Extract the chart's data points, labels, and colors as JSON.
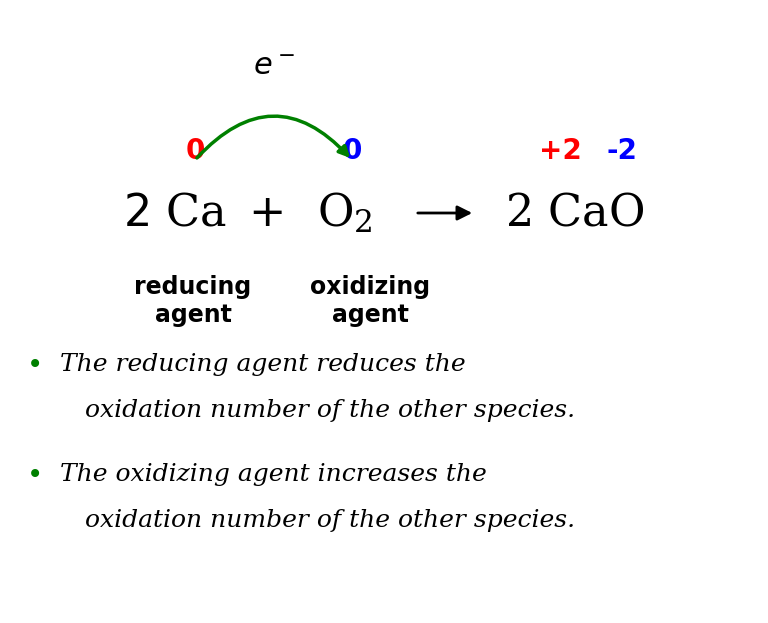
{
  "bg_color": "#ffffff",
  "arrow_color": "#008000",
  "black": "#000000",
  "red": "#ff0000",
  "blue": "#0000ff",
  "green": "#008000",
  "ox_ca": "0",
  "ox_o2": "0",
  "ox_ca_prod": "+2",
  "ox_o_prod": "-2",
  "bullet1_line1": "The reducing agent reduces the",
  "bullet1_line2": "oxidation number of the other species.",
  "bullet2_line1": "The oxidizing agent increases the",
  "bullet2_line2": "oxidation number of the other species.",
  "eq_fontsize": 32,
  "label_fontsize": 17,
  "bullet_fontsize": 18,
  "ox_fontsize": 20,
  "electron_fontsize": 22,
  "fig_width": 7.68,
  "fig_height": 6.23,
  "dpi": 100
}
